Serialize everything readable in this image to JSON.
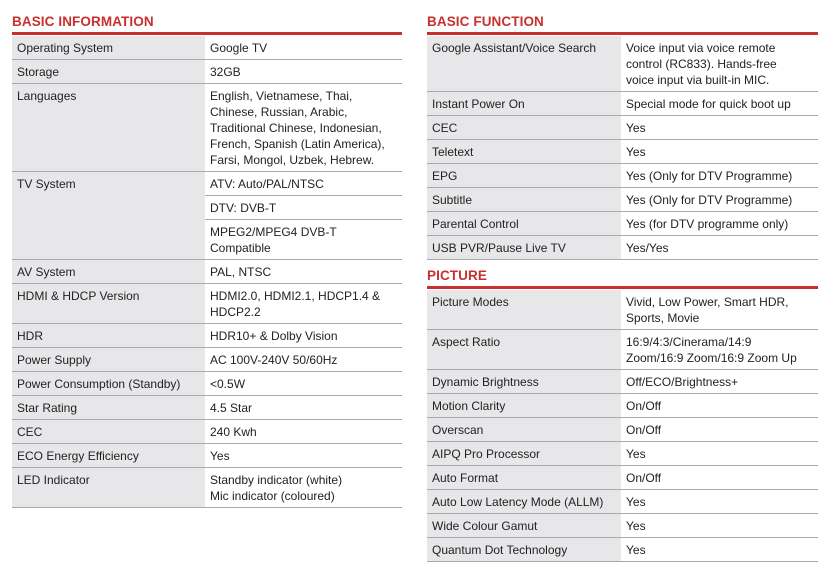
{
  "sections": [
    {
      "title": "BASIC INFORMATION",
      "rows": [
        {
          "label": "Operating System",
          "value": "Google TV"
        },
        {
          "label": "Storage",
          "value": "32GB"
        },
        {
          "label": "Languages",
          "value": "English, Vietnamese, Thai,\nChinese, Russian, Arabic,\nTraditional Chinese, Indonesian,\nFrench, Spanish (Latin America),\nFarsi, Mongol, Uzbek, Hebrew."
        },
        {
          "label": "TV System",
          "values": [
            "ATV: Auto/PAL/NTSC",
            "DTV: DVB-T",
            "MPEG2/MPEG4 DVB-T\nCompatible"
          ]
        },
        {
          "label": "AV System",
          "value": "PAL, NTSC"
        },
        {
          "label": "HDMI & HDCP Version",
          "value": "HDMI2.0, HDMI2.1, HDCP1.4 &\nHDCP2.2"
        },
        {
          "label": "HDR",
          "value": "HDR10+ & Dolby Vision"
        },
        {
          "label": "Power Supply",
          "value": "AC 100V-240V 50/60Hz"
        },
        {
          "label": "Power Consumption (Standby)",
          "value": "<0.5W"
        },
        {
          "label": "Star Rating",
          "value": "4.5 Star"
        },
        {
          "label": "CEC",
          "value": "240 Kwh"
        },
        {
          "label": "ECO Energy Efficiency",
          "value": "Yes"
        },
        {
          "label": "LED Indicator",
          "value": "Standby indicator (white)\nMic indicator (coloured)"
        }
      ]
    },
    {
      "title": "BASIC FUNCTION",
      "rows": [
        {
          "label": "Google Assistant/Voice Search",
          "value": "Voice input via voice remote\ncontrol (RC833). Hands-free\nvoice input via built-in MIC."
        },
        {
          "label": "Instant Power On",
          "value": "Special mode for quick boot up"
        },
        {
          "label": "CEC",
          "value": "Yes"
        },
        {
          "label": "Teletext",
          "value": "Yes"
        },
        {
          "label": "EPG",
          "value": "Yes (Only for DTV Programme)"
        },
        {
          "label": "Subtitle",
          "value": "Yes (Only for DTV Programme)"
        },
        {
          "label": "Parental Control",
          "value": "Yes (for DTV programme only)"
        },
        {
          "label": "USB PVR/Pause Live TV",
          "value": "Yes/Yes"
        }
      ]
    },
    {
      "title": "PICTURE",
      "rows": [
        {
          "label": "Picture Modes",
          "value": "Vivid, Low Power, Smart HDR,\nSports, Movie"
        },
        {
          "label": "Aspect Ratio",
          "value": "16:9/4:3/Cinerama/14:9\nZoom/16:9 Zoom/16:9 Zoom Up"
        },
        {
          "label": "Dynamic Brightness",
          "value": "Off/ECO/Brightness+"
        },
        {
          "label": "Motion Clarity",
          "value": "On/Off"
        },
        {
          "label": "Overscan",
          "value": "On/Off"
        },
        {
          "label": "AIPQ Pro Processor",
          "value": "Yes"
        },
        {
          "label": "Auto Format",
          "value": "On/Off"
        },
        {
          "label": "Auto Low Latency Mode (ALLM)",
          "value": "Yes"
        },
        {
          "label": "Wide Colour Gamut",
          "value": "Yes"
        },
        {
          "label": "Quantum Dot Technology",
          "value": "Yes"
        }
      ]
    }
  ]
}
